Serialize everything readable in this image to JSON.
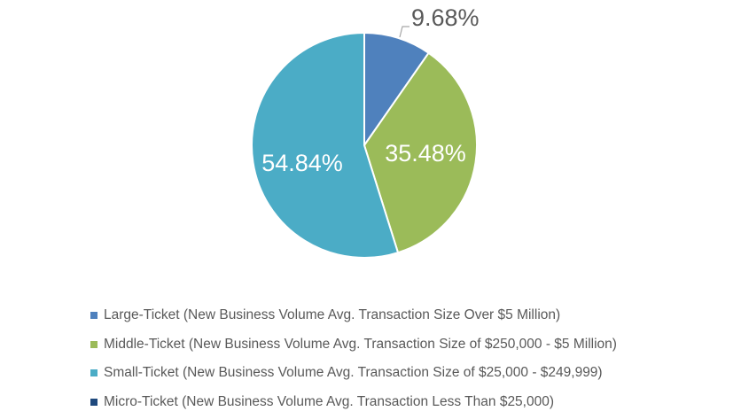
{
  "chart_data": {
    "type": "pie",
    "title": "",
    "start_angle": "top, clockwise",
    "legend_position": "bottom",
    "series": [
      {
        "name": "Large-Ticket (New Business Volume Avg. Transaction Size Over $5 Million)",
        "value": 9.68,
        "label": "9.68%",
        "color": "#4F81BD",
        "label_color": "#595959"
      },
      {
        "name": "Middle-Ticket (New Business Volume Avg. Transaction Size of $250,000 - $5 Million)",
        "value": 35.48,
        "label": "35.48%",
        "color": "#9BBB59",
        "label_color": "#FFFFFF"
      },
      {
        "name": "Small-Ticket (New Business Volume Avg. Transaction Size of $25,000 - $249,999)",
        "value": 54.84,
        "label": "54.84%",
        "color": "#4BACC6",
        "label_color": "#FFFFFF"
      },
      {
        "name": "Micro-Ticket (New Business Volume Avg. Transaction Less Than $25,000)",
        "value": 0,
        "label": "",
        "color": "#1F497D",
        "label_color": "#FFFFFF"
      }
    ]
  }
}
